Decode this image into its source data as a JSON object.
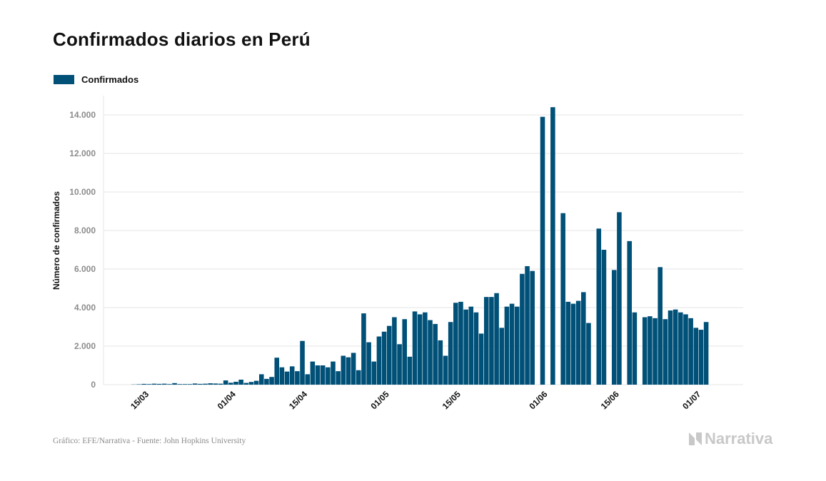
{
  "title": "Confirmados diarios en Perú",
  "footer": "Gráfico: EFE/Narrativa - Fuente: John Hopkins University",
  "brand": "Narrativa",
  "colors": {
    "bar": "#005078",
    "grid": "#e6e6e6",
    "tick": "#8c8c8c",
    "text": "#111111"
  },
  "chart_data": {
    "type": "bar",
    "ylabel": "Número de confirmados",
    "ylim": [
      0,
      15000
    ],
    "y_ticks": [
      0,
      2000,
      4000,
      6000,
      8000,
      10000,
      12000,
      14000
    ],
    "y_tick_labels": [
      "0",
      "2.000",
      "4.000",
      "6.000",
      "8.000",
      "10.000",
      "12.000",
      "14.000"
    ],
    "grid": true,
    "legend_position": "top-left",
    "x_ticks": [
      "15/03",
      "01/04",
      "15/04",
      "01/05",
      "15/05",
      "01/06",
      "15/06",
      "01/07"
    ],
    "x_tick_dates": [
      "03-15",
      "04-01",
      "04-15",
      "05-01",
      "05-15",
      "06-01",
      "06-15",
      "07-01"
    ],
    "series": [
      {
        "name": "Confirmados",
        "points": [
          [
            "03-12",
            10
          ],
          [
            "03-13",
            20
          ],
          [
            "03-14",
            40
          ],
          [
            "03-15",
            30
          ],
          [
            "03-16",
            50
          ],
          [
            "03-17",
            40
          ],
          [
            "03-18",
            50
          ],
          [
            "03-19",
            30
          ],
          [
            "03-20",
            80
          ],
          [
            "03-21",
            30
          ],
          [
            "03-22",
            30
          ],
          [
            "03-23",
            30
          ],
          [
            "03-24",
            60
          ],
          [
            "03-25",
            40
          ],
          [
            "03-26",
            50
          ],
          [
            "03-27",
            70
          ],
          [
            "03-28",
            60
          ],
          [
            "03-29",
            50
          ],
          [
            "03-30",
            220
          ],
          [
            "03-31",
            100
          ],
          [
            "04-01",
            150
          ],
          [
            "04-02",
            260
          ],
          [
            "04-03",
            90
          ],
          [
            "04-04",
            140
          ],
          [
            "04-05",
            200
          ],
          [
            "04-06",
            540
          ],
          [
            "04-07",
            300
          ],
          [
            "04-08",
            400
          ],
          [
            "04-09",
            1400
          ],
          [
            "04-10",
            900
          ],
          [
            "04-11",
            680
          ],
          [
            "04-12",
            950
          ],
          [
            "04-13",
            700
          ],
          [
            "04-14",
            2270
          ],
          [
            "04-15",
            540
          ],
          [
            "04-16",
            1200
          ],
          [
            "04-17",
            1000
          ],
          [
            "04-18",
            1000
          ],
          [
            "04-19",
            900
          ],
          [
            "04-20",
            1200
          ],
          [
            "04-21",
            700
          ],
          [
            "04-22",
            1500
          ],
          [
            "04-23",
            1420
          ],
          [
            "04-24",
            1650
          ],
          [
            "04-25",
            750
          ],
          [
            "04-26",
            3700
          ],
          [
            "04-27",
            2200
          ],
          [
            "04-28",
            1200
          ],
          [
            "04-29",
            2500
          ],
          [
            "04-30",
            2750
          ],
          [
            "05-01",
            3050
          ],
          [
            "05-02",
            3500
          ],
          [
            "05-03",
            2100
          ],
          [
            "05-04",
            3400
          ],
          [
            "05-05",
            1450
          ],
          [
            "05-06",
            3800
          ],
          [
            "05-07",
            3650
          ],
          [
            "05-08",
            3750
          ],
          [
            "05-09",
            3350
          ],
          [
            "05-10",
            3150
          ],
          [
            "05-11",
            2300
          ],
          [
            "05-12",
            1500
          ],
          [
            "05-13",
            3250
          ],
          [
            "05-14",
            4250
          ],
          [
            "05-15",
            4300
          ],
          [
            "05-16",
            3900
          ],
          [
            "05-17",
            4050
          ],
          [
            "05-18",
            3750
          ],
          [
            "05-19",
            2650
          ],
          [
            "05-20",
            4550
          ],
          [
            "05-21",
            4550
          ],
          [
            "05-22",
            4750
          ],
          [
            "05-23",
            2950
          ],
          [
            "05-24",
            4050
          ],
          [
            "05-25",
            4200
          ],
          [
            "05-26",
            4050
          ],
          [
            "05-27",
            5750
          ],
          [
            "05-28",
            6150
          ],
          [
            "05-29",
            5900
          ],
          [
            "05-30",
            0
          ],
          [
            "05-31",
            13900
          ],
          [
            "06-01",
            0
          ],
          [
            "06-02",
            14400
          ],
          [
            "06-03",
            0
          ],
          [
            "06-04",
            8900
          ],
          [
            "06-05",
            4300
          ],
          [
            "06-06",
            4200
          ],
          [
            "06-07",
            4350
          ],
          [
            "06-08",
            4800
          ],
          [
            "06-09",
            3200
          ],
          [
            "06-10",
            0
          ],
          [
            "06-11",
            8100
          ],
          [
            "06-12",
            7000
          ],
          [
            "06-13",
            0
          ],
          [
            "06-14",
            5950
          ],
          [
            "06-15",
            8950
          ],
          [
            "06-16",
            0
          ],
          [
            "06-17",
            7450
          ],
          [
            "06-18",
            3750
          ],
          [
            "06-19",
            0
          ],
          [
            "06-20",
            3500
          ],
          [
            "06-21",
            3550
          ],
          [
            "06-22",
            3450
          ],
          [
            "06-23",
            6100
          ],
          [
            "06-24",
            3400
          ],
          [
            "06-25",
            3850
          ],
          [
            "06-26",
            3900
          ],
          [
            "06-27",
            3750
          ],
          [
            "06-28",
            3650
          ],
          [
            "06-29",
            3450
          ],
          [
            "06-30",
            2950
          ],
          [
            "07-01",
            2850
          ],
          [
            "07-02",
            3250
          ]
        ]
      }
    ]
  }
}
